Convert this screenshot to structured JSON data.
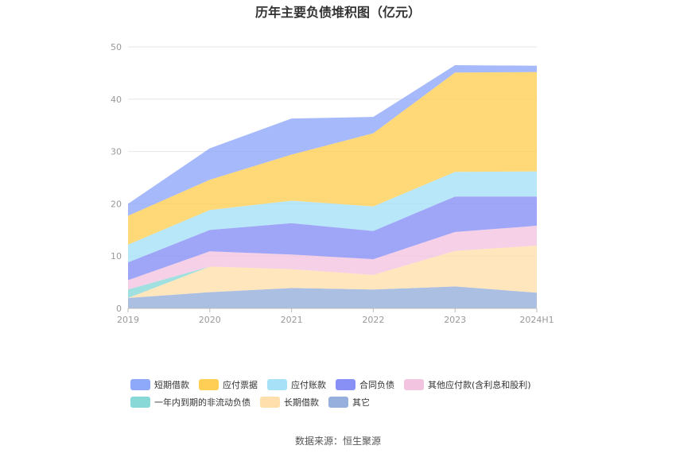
{
  "chart_data": {
    "type": "area",
    "stacked": true,
    "title": "历年主要负债堆积图（亿元）",
    "categories": [
      "2019",
      "2020",
      "2021",
      "2022",
      "2023",
      "2024H1"
    ],
    "ylim": [
      0,
      50
    ],
    "yticks": [
      0,
      10,
      20,
      30,
      40,
      50
    ],
    "grid": true,
    "legend_position": "bottom",
    "series": [
      {
        "name": "其它",
        "color": "#96AFDC",
        "values": [
          2.0,
          3.1,
          3.9,
          3.6,
          4.2,
          3.0
        ]
      },
      {
        "name": "长期借款",
        "color": "#FFE0AC",
        "values": [
          0.0,
          4.9,
          3.6,
          2.8,
          6.8,
          9.0
        ]
      },
      {
        "name": "一年内到期的非流动负债",
        "color": "#88D8D8",
        "values": [
          1.6,
          0.0,
          0.0,
          0.0,
          0.0,
          0.0
        ]
      },
      {
        "name": "其他应付款(含利息和股利)",
        "color": "#F2C4E0",
        "values": [
          1.8,
          2.9,
          2.8,
          3.0,
          3.6,
          3.8
        ]
      },
      {
        "name": "合同负债",
        "color": "#8890F5",
        "values": [
          3.4,
          4.1,
          6.0,
          5.4,
          6.8,
          5.6
        ]
      },
      {
        "name": "应付账款",
        "color": "#A6E1F8",
        "values": [
          3.4,
          3.8,
          4.3,
          4.7,
          4.7,
          4.8
        ]
      },
      {
        "name": "应付票据",
        "color": "#FFCE55",
        "values": [
          5.5,
          5.8,
          8.8,
          14.0,
          19.0,
          19.0
        ]
      },
      {
        "name": "短期借款",
        "color": "#8EA8FA",
        "values": [
          2.3,
          6.0,
          6.9,
          3.1,
          1.4,
          1.2
        ]
      }
    ],
    "legend_order": [
      "短期借款",
      "应付票据",
      "应付账款",
      "合同负债",
      "其他应付款(含利息和股利)",
      "一年内到期的非流动负债",
      "长期借款",
      "其它"
    ]
  },
  "source": "数据来源：恒生聚源"
}
